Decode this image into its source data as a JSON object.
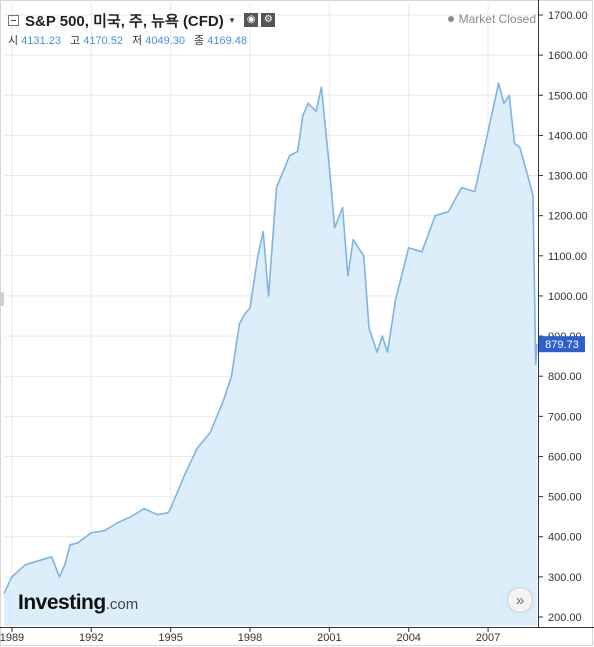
{
  "header": {
    "title": "S&P 500, 미국, 주, 뉴욕 (CFD)",
    "caret": "▾",
    "settings_icon": "gear-icon",
    "eye_icon": "eye-icon"
  },
  "ohlc": {
    "open_label": "시",
    "open_value": "4131.23",
    "high_label": "고",
    "high_value": "4170.52",
    "low_label": "저",
    "low_value": "4049.30",
    "close_label": "종",
    "close_value": "4169.48"
  },
  "status": {
    "text": "Market Closed"
  },
  "logo": {
    "main": "Investing",
    "suffix": ".com"
  },
  "scroll_button": {
    "label": "»"
  },
  "colors": {
    "line": "#7fb3e6",
    "fill": "#dbeefa",
    "badge": "#2f5fcf",
    "grid": "#e9e9e9"
  },
  "chart_data": {
    "type": "area",
    "title": "S&P 500, 미국, 주, 뉴욕 (CFD)",
    "xlabel": "",
    "ylabel": "",
    "x_ticks": [
      "1989",
      "1992",
      "1995",
      "1998",
      "2001",
      "2004",
      "2007"
    ],
    "y_ticks": [
      "200.00",
      "300.00",
      "400.00",
      "500.00",
      "600.00",
      "700.00",
      "800.00",
      "900.00",
      "1000.00",
      "1100.00",
      "1200.00",
      "1300.00",
      "1400.00",
      "1500.00",
      "1600.00",
      "1700.00"
    ],
    "xlim": [
      1988.7,
      2008.85
    ],
    "ylim": [
      185,
      1725
    ],
    "last_value": "879.73",
    "x": [
      1988.7,
      1989.0,
      1989.5,
      1990.0,
      1990.5,
      1990.8,
      1991.0,
      1991.2,
      1991.5,
      1992.0,
      1992.5,
      1993.0,
      1993.5,
      1994.0,
      1994.5,
      1994.9,
      1995.0,
      1995.5,
      1996.0,
      1996.5,
      1997.0,
      1997.3,
      1997.6,
      1997.8,
      1998.0,
      1998.3,
      1998.5,
      1998.7,
      1999.0,
      1999.5,
      1999.8,
      2000.0,
      2000.2,
      2000.5,
      2000.7,
      2001.0,
      2001.2,
      2001.5,
      2001.7,
      2001.9,
      2002.0,
      2002.3,
      2002.5,
      2002.8,
      2003.0,
      2003.2,
      2003.5,
      2004.0,
      2004.5,
      2005.0,
      2005.5,
      2006.0,
      2006.5,
      2007.0,
      2007.4,
      2007.6,
      2007.8,
      2008.0,
      2008.2,
      2008.5,
      2008.7,
      2008.8,
      2008.85
    ],
    "values": [
      258,
      300,
      330,
      340,
      350,
      300,
      330,
      380,
      385,
      410,
      415,
      435,
      450,
      470,
      455,
      460,
      470,
      550,
      620,
      660,
      740,
      800,
      930,
      955,
      970,
      1100,
      1160,
      1000,
      1270,
      1350,
      1360,
      1450,
      1480,
      1460,
      1520,
      1320,
      1170,
      1220,
      1050,
      1140,
      1130,
      1100,
      920,
      860,
      900,
      860,
      990,
      1120,
      1110,
      1200,
      1210,
      1270,
      1260,
      1410,
      1530,
      1480,
      1500,
      1380,
      1370,
      1300,
      1250,
      830,
      879.73
    ]
  }
}
